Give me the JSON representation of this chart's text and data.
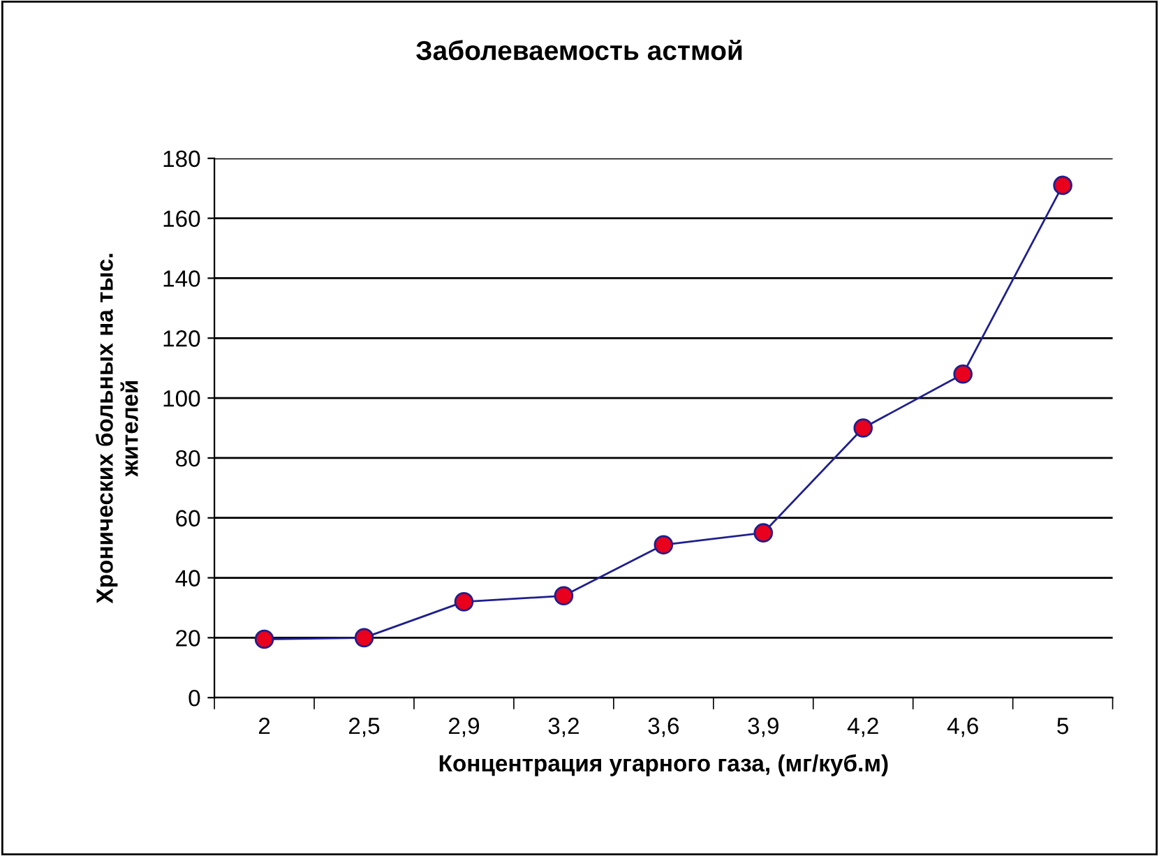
{
  "chart_data": {
    "type": "line",
    "title": "Заболеваемость астмой",
    "xlabel": "Концентрация угарного газа, (мг/куб.м)",
    "ylabel": "Хронических больных на тыс.\nжителей",
    "categories": [
      "2",
      "2,5",
      "2,9",
      "3,2",
      "3,6",
      "3,9",
      "4,2",
      "4,6",
      "5"
    ],
    "series": [
      {
        "color": "#1f1f8f",
        "colors": [
          "#e8001c",
          "#e8001c",
          "#e8001c",
          "#e8001c",
          "#e8001c",
          "#e8001c",
          "#e8001c",
          "#e8001c",
          "#e8001c"
        ],
        "values": [
          19.5,
          20,
          32,
          34,
          51,
          55,
          90,
          108,
          171
        ]
      }
    ],
    "ylim": [
      0,
      180
    ],
    "yticks": [
      0,
      20,
      40,
      60,
      80,
      100,
      120,
      140,
      160,
      180
    ],
    "grid": "y",
    "marker": "circle",
    "line_style": "solid",
    "legend": false
  }
}
